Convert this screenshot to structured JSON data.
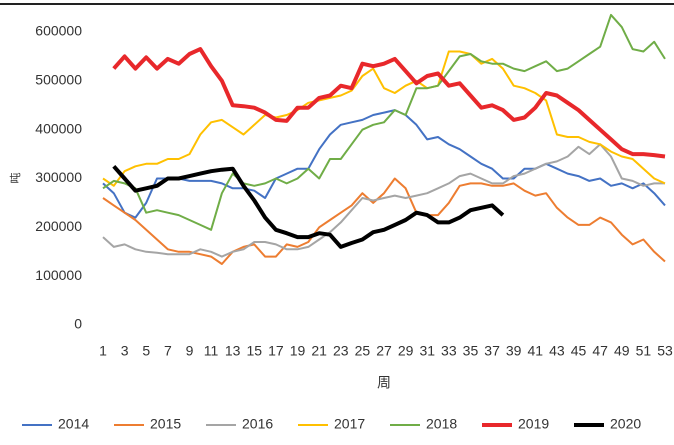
{
  "chart_data": {
    "type": "line",
    "x_label": "周",
    "y_label": "吨",
    "x": [
      1,
      2,
      3,
      4,
      5,
      6,
      7,
      8,
      9,
      10,
      11,
      12,
      13,
      14,
      15,
      16,
      17,
      18,
      19,
      20,
      21,
      22,
      23,
      24,
      25,
      26,
      27,
      28,
      29,
      30,
      31,
      32,
      33,
      34,
      35,
      36,
      37,
      38,
      39,
      40,
      41,
      42,
      43,
      44,
      45,
      46,
      47,
      48,
      49,
      50,
      51,
      52,
      53
    ],
    "xlim": [
      1,
      53
    ],
    "xticks": [
      1,
      3,
      5,
      7,
      9,
      11,
      13,
      15,
      17,
      19,
      21,
      23,
      25,
      27,
      29,
      31,
      33,
      35,
      37,
      39,
      41,
      43,
      45,
      47,
      49,
      51,
      53
    ],
    "ylim": [
      0,
      600000
    ],
    "yticks": [
      0,
      100000,
      200000,
      300000,
      400000,
      500000,
      600000
    ],
    "grid": false,
    "legend": "bottom",
    "series": [
      {
        "name": "2014",
        "color": "#4472c4",
        "line_width": 2,
        "values": [
          290000,
          270000,
          230000,
          220000,
          250000,
          300000,
          300000,
          300000,
          295000,
          295000,
          295000,
          290000,
          280000,
          280000,
          275000,
          260000,
          300000,
          310000,
          320000,
          320000,
          360000,
          390000,
          410000,
          415000,
          420000,
          430000,
          435000,
          440000,
          430000,
          410000,
          380000,
          385000,
          370000,
          360000,
          345000,
          330000,
          320000,
          300000,
          300000,
          320000,
          320000,
          330000,
          320000,
          310000,
          305000,
          295000,
          300000,
          285000,
          290000,
          280000,
          290000,
          270000,
          245000
        ]
      },
      {
        "name": "2015",
        "color": "#ed7d31",
        "line_width": 2,
        "values": [
          260000,
          245000,
          230000,
          215000,
          195000,
          175000,
          155000,
          150000,
          150000,
          145000,
          140000,
          125000,
          150000,
          160000,
          165000,
          140000,
          140000,
          165000,
          160000,
          170000,
          200000,
          215000,
          230000,
          245000,
          270000,
          250000,
          270000,
          300000,
          280000,
          230000,
          225000,
          225000,
          250000,
          285000,
          290000,
          290000,
          285000,
          285000,
          290000,
          275000,
          265000,
          270000,
          240000,
          220000,
          205000,
          205000,
          220000,
          210000,
          185000,
          165000,
          175000,
          150000,
          130000
        ]
      },
      {
        "name": "2016",
        "color": "#a5a5a5",
        "line_width": 2,
        "values": [
          180000,
          160000,
          165000,
          155000,
          150000,
          148000,
          145000,
          145000,
          145000,
          155000,
          150000,
          140000,
          150000,
          155000,
          170000,
          170000,
          165000,
          155000,
          155000,
          160000,
          175000,
          190000,
          210000,
          235000,
          260000,
          255000,
          260000,
          265000,
          260000,
          265000,
          270000,
          280000,
          290000,
          305000,
          310000,
          300000,
          290000,
          290000,
          305000,
          310000,
          320000,
          330000,
          335000,
          345000,
          365000,
          350000,
          370000,
          345000,
          300000,
          295000,
          285000,
          290000,
          290000
        ]
      },
      {
        "name": "2017",
        "color": "#ffc000",
        "line_width": 2,
        "values": [
          300000,
          285000,
          315000,
          325000,
          330000,
          330000,
          340000,
          340000,
          350000,
          390000,
          415000,
          420000,
          405000,
          390000,
          410000,
          430000,
          425000,
          430000,
          440000,
          455000,
          460000,
          465000,
          470000,
          480000,
          510000,
          525000,
          485000,
          475000,
          490000,
          500000,
          485000,
          490000,
          560000,
          560000,
          555000,
          535000,
          545000,
          525000,
          490000,
          485000,
          475000,
          460000,
          390000,
          385000,
          385000,
          375000,
          370000,
          355000,
          345000,
          340000,
          320000,
          300000,
          290000
        ]
      },
      {
        "name": "2018",
        "color": "#70ad47",
        "line_width": 2,
        "values": [
          280000,
          295000,
          290000,
          280000,
          230000,
          235000,
          230000,
          225000,
          215000,
          205000,
          195000,
          270000,
          310000,
          290000,
          285000,
          290000,
          300000,
          290000,
          300000,
          320000,
          300000,
          340000,
          340000,
          370000,
          400000,
          410000,
          415000,
          440000,
          430000,
          485000,
          485000,
          490000,
          520000,
          550000,
          555000,
          540000,
          535000,
          535000,
          525000,
          520000,
          530000,
          540000,
          520000,
          525000,
          540000,
          555000,
          570000,
          635000,
          610000,
          565000,
          560000,
          580000,
          545000
        ]
      },
      {
        "name": "2019",
        "color": "#e8282b",
        "line_width": 4,
        "values": [
          null,
          525000,
          550000,
          525000,
          548000,
          525000,
          545000,
          535000,
          555000,
          565000,
          530000,
          500000,
          450000,
          448000,
          445000,
          435000,
          420000,
          418000,
          445000,
          445000,
          465000,
          470000,
          490000,
          485000,
          535000,
          530000,
          535000,
          545000,
          520000,
          495000,
          510000,
          515000,
          490000,
          495000,
          470000,
          445000,
          450000,
          440000,
          420000,
          425000,
          445000,
          475000,
          470000,
          455000,
          440000,
          420000,
          400000,
          380000,
          360000,
          350000,
          350000,
          348000,
          345000
        ]
      },
      {
        "name": "2020",
        "color": "#000000",
        "line_width": 4,
        "values": [
          null,
          325000,
          300000,
          275000,
          280000,
          285000,
          300000,
          300000,
          305000,
          310000,
          315000,
          318000,
          320000,
          285000,
          255000,
          220000,
          195000,
          188000,
          180000,
          180000,
          188000,
          185000,
          160000,
          168000,
          175000,
          190000,
          195000,
          205000,
          215000,
          230000,
          225000,
          210000,
          210000,
          220000,
          235000,
          240000,
          245000,
          225000,
          null,
          null,
          null,
          null,
          null,
          null,
          null,
          null,
          null,
          null,
          null,
          null,
          null,
          null,
          null
        ]
      }
    ]
  }
}
